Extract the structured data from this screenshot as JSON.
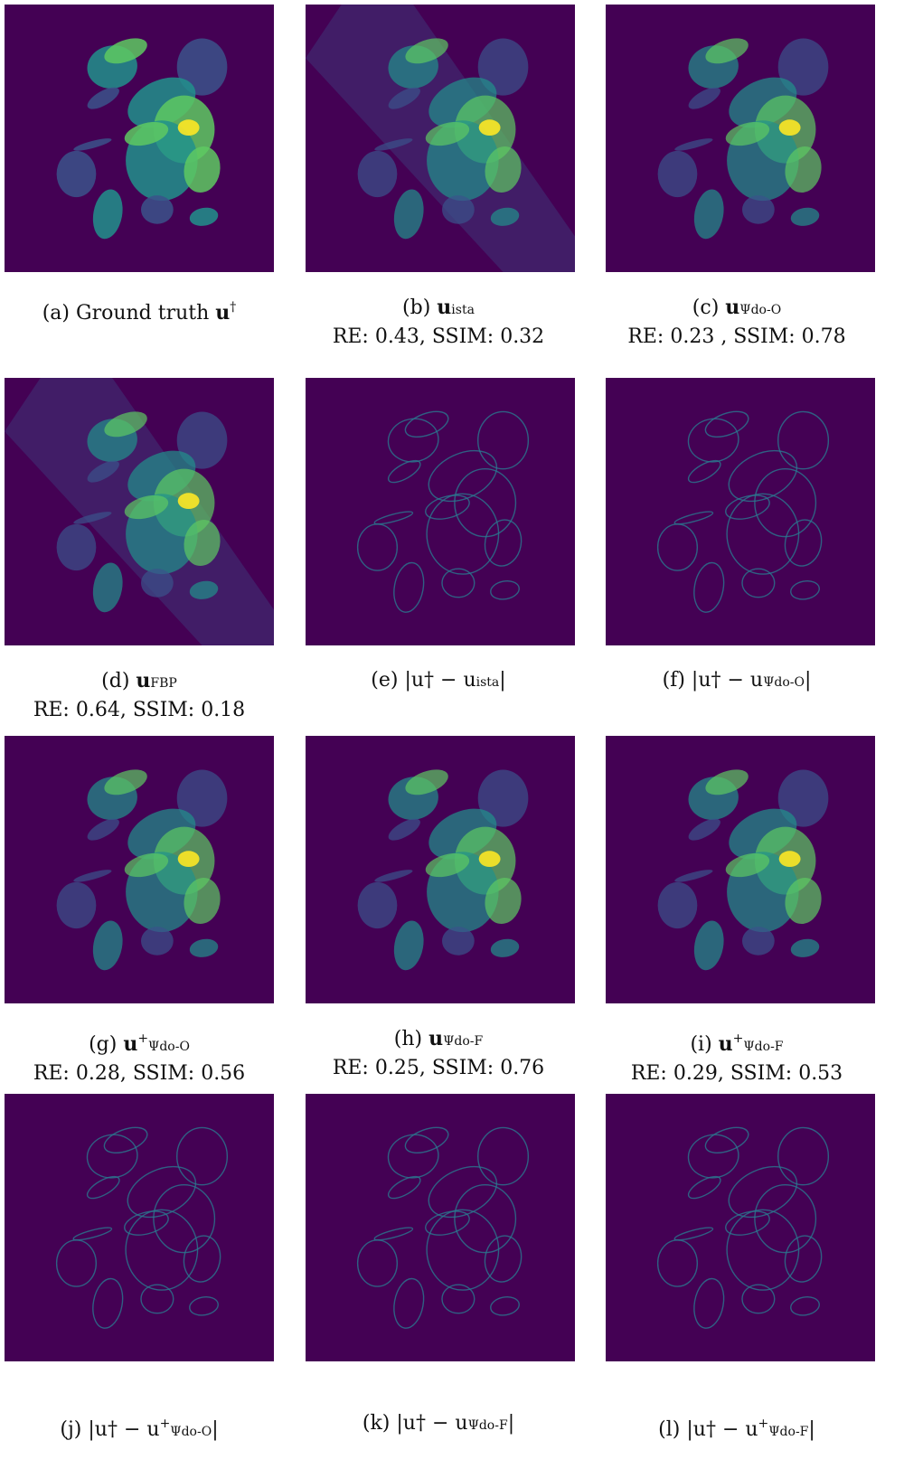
{
  "figure": {
    "panels": [
      {
        "id": "a",
        "letter": "(a)",
        "kind": "truth",
        "caption_pre": "Ground truth",
        "sym": "u",
        "sup": "†",
        "sub": "",
        "metrics": ""
      },
      {
        "id": "b",
        "letter": "(b)",
        "kind": "recon",
        "caption_pre": "",
        "sym": "u",
        "sup": "",
        "sub": "ista",
        "metrics": "RE: 0.43, SSIM: 0.32"
      },
      {
        "id": "c",
        "letter": "(c)",
        "kind": "recon",
        "caption_pre": "",
        "sym": "u",
        "sup": "",
        "sub": "Ψdo-O",
        "metrics": "RE: 0.23 , SSIM: 0.78"
      },
      {
        "id": "d",
        "letter": "(d)",
        "kind": "recon",
        "caption_pre": "",
        "sym": "u",
        "sup": "",
        "sub": "FBP",
        "metrics": "RE: 0.64, SSIM: 0.18"
      },
      {
        "id": "e",
        "letter": "(e)",
        "kind": "error",
        "caption_pre": "",
        "sym": "|u† − u",
        "sup": "",
        "sub": "ista",
        "post": "|",
        "metrics": ""
      },
      {
        "id": "f",
        "letter": "(f)",
        "kind": "error",
        "caption_pre": "",
        "sym": "|u† − u",
        "sup": "",
        "sub": "Ψdo-O",
        "post": "|",
        "metrics": ""
      },
      {
        "id": "g",
        "letter": "(g)",
        "kind": "recon",
        "caption_pre": "",
        "sym": "u",
        "sup": "+",
        "sub": "Ψdo-O",
        "metrics": "RE: 0.28, SSIM: 0.56"
      },
      {
        "id": "h",
        "letter": "(h)",
        "kind": "recon",
        "caption_pre": "",
        "sym": "u",
        "sup": "",
        "sub": "Ψdo-F",
        "metrics": "RE: 0.25, SSIM: 0.76"
      },
      {
        "id": "i",
        "letter": "(i)",
        "kind": "recon",
        "caption_pre": "",
        "sym": "u",
        "sup": "+",
        "sub": "Ψdo-F",
        "metrics": "RE: 0.29, SSIM: 0.53"
      },
      {
        "id": "j",
        "letter": "(j)",
        "kind": "error",
        "caption_pre": "",
        "sym": "|u† − u",
        "sup": "+",
        "sub": "Ψdo-O",
        "post": "|",
        "metrics": ""
      },
      {
        "id": "k",
        "letter": "(k)",
        "kind": "error",
        "caption_pre": "",
        "sym": "|u† − u",
        "sup": "",
        "sub": "Ψdo-F",
        "post": "|",
        "metrics": ""
      },
      {
        "id": "l",
        "letter": "(l)",
        "kind": "error",
        "caption_pre": "",
        "sym": "|u† − u",
        "sup": "+",
        "sub": "Ψdo-F",
        "post": "|",
        "metrics": ""
      }
    ],
    "colors": {
      "background": "#440154",
      "dark": "#3b528b",
      "mid": "#21918c",
      "bright": "#5ec962",
      "peak": "#fde725",
      "edge": "#2a788e"
    }
  }
}
